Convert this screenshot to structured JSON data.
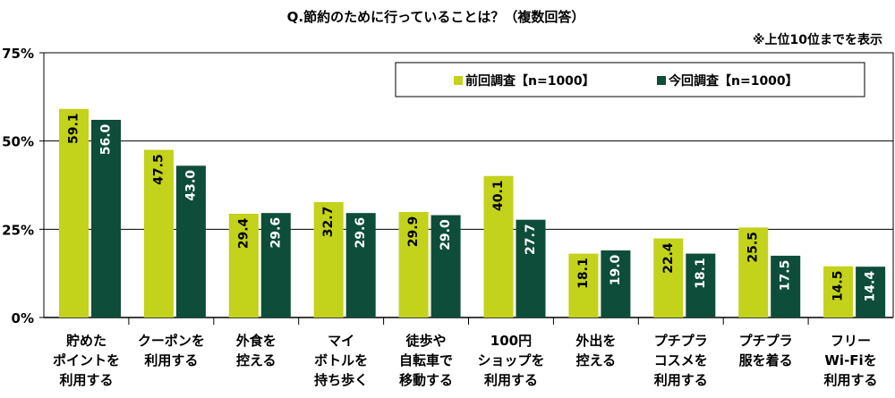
{
  "chart_data": {
    "type": "bar",
    "title": "Q.節約のために行っていることは？（複数回答）",
    "note": "※上位10位までを表示",
    "categories": [
      [
        "貯めた",
        "ポイントを",
        "利用する"
      ],
      [
        "クーポンを",
        "利用する"
      ],
      [
        "外食を",
        "控える"
      ],
      [
        "マイ",
        "ボトルを",
        "持ち歩く"
      ],
      [
        "徒歩や",
        "自転車で",
        "移動する"
      ],
      [
        "100円",
        "ショップを",
        "利用する"
      ],
      [
        "外出を",
        "控える"
      ],
      [
        "プチプラ",
        "コスメを",
        "利用する"
      ],
      [
        "プチプラ",
        "服を着る"
      ],
      [
        "フリー",
        "Wi-Fiを",
        "利用する"
      ]
    ],
    "series": [
      {
        "name": "前回調査【n=1000】",
        "color": "#c3d21a",
        "label_color": "#000000",
        "values": [
          59.1,
          47.5,
          29.4,
          32.7,
          29.9,
          40.1,
          18.1,
          22.4,
          25.5,
          14.5
        ],
        "labels": [
          "59.1",
          "47.5",
          "29.4",
          "32.7",
          "29.9",
          "40.1",
          "18.1",
          "22.4",
          "25.5",
          "14.5"
        ]
      },
      {
        "name": "今回調査【n=1000】",
        "color": "#0e4d3a",
        "label_color": "#ffffff",
        "values": [
          56.0,
          43.0,
          29.6,
          29.6,
          29.0,
          27.7,
          19.0,
          18.1,
          17.5,
          14.4
        ],
        "labels": [
          "56.0",
          "43.0",
          "29.6",
          "29.6",
          "29.0",
          "27.7",
          "19.0",
          "18.1",
          "17.5",
          "14.4"
        ]
      }
    ],
    "yticks": [
      "0%",
      "25%",
      "50%",
      "75%"
    ],
    "ytick_values": [
      0,
      25,
      50,
      75
    ],
    "ylim": [
      0,
      75
    ],
    "grid": true,
    "legend": "top-right",
    "colors": {
      "axis": "#000000",
      "grid": "#000000"
    }
  }
}
